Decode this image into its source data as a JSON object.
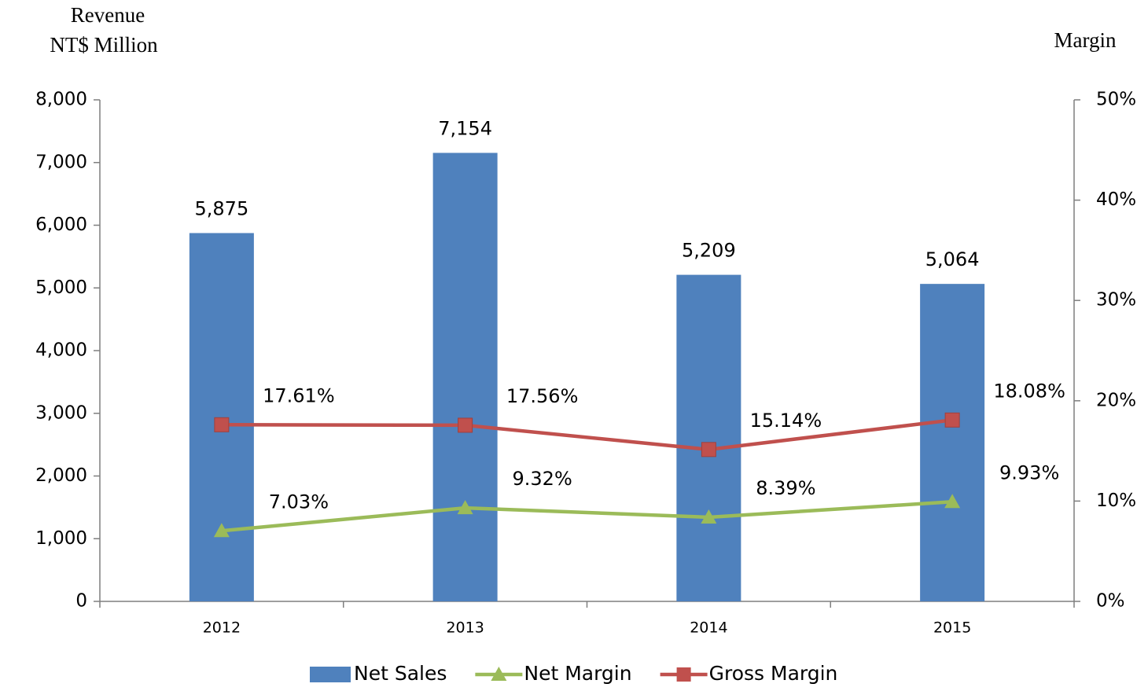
{
  "chart_data": {
    "type": "bar",
    "ylabel": [
      "Revenue",
      "NT$ Million"
    ],
    "y2label": "Margin",
    "categories": [
      "2012",
      "2013",
      "2014",
      "2015"
    ],
    "series": [
      {
        "name": "Net Sales",
        "type": "bar",
        "color": "#4f81bd",
        "values": [
          5875,
          7154,
          5209,
          5064
        ],
        "value_labels": [
          "5,875",
          "7,154",
          "5,209",
          "5,064"
        ]
      },
      {
        "name": "Net Margin",
        "type": "line",
        "axis": "y2",
        "marker": "triangle",
        "color": "#9bbb59",
        "values": [
          7.03,
          9.32,
          8.39,
          9.93
        ],
        "value_labels": [
          "7.03%",
          "9.32%",
          "8.39%",
          "9.93%"
        ]
      },
      {
        "name": "Gross Margin",
        "type": "line",
        "axis": "y2",
        "marker": "square",
        "color": "#c0504d",
        "values": [
          17.61,
          17.56,
          15.14,
          18.08
        ],
        "value_labels": [
          "17.61%",
          "17.56%",
          "15.14%",
          "18.08%"
        ]
      }
    ],
    "ylim": [
      0,
      8000
    ],
    "yticks": [
      {
        "value": 0,
        "label": "0"
      },
      {
        "value": 1000,
        "label": "1,000"
      },
      {
        "value": 2000,
        "label": "2,000"
      },
      {
        "value": 3000,
        "label": "3,000"
      },
      {
        "value": 4000,
        "label": "4,000"
      },
      {
        "value": 5000,
        "label": "5,000"
      },
      {
        "value": 6000,
        "label": "6,000"
      },
      {
        "value": 7000,
        "label": "7,000"
      },
      {
        "value": 8000,
        "label": "8,000"
      }
    ],
    "y2lim": [
      0,
      50
    ],
    "y2ticks": [
      {
        "value": 0,
        "label": "0%"
      },
      {
        "value": 10,
        "label": "10%"
      },
      {
        "value": 20,
        "label": "20%"
      },
      {
        "value": 30,
        "label": "30%"
      },
      {
        "value": 40,
        "label": "40%"
      },
      {
        "value": 50,
        "label": "50%"
      }
    ],
    "grid": false,
    "legend": "bottom"
  }
}
